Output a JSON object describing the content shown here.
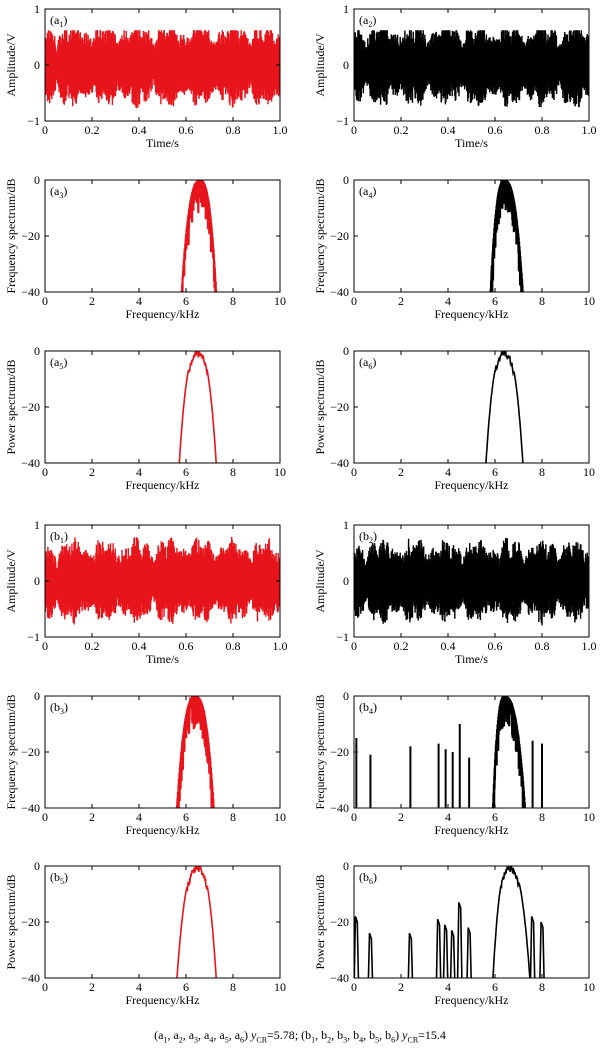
{
  "colors": {
    "red": "#e8141b",
    "black": "#000000"
  },
  "chart_data": [
    {
      "id": "a1",
      "type": "line",
      "signal": "time",
      "color": "red",
      "panel_label": "a",
      "panel_sub": "1",
      "xlabel": "Time/s",
      "ylabel": "Amplitude/V",
      "xlim": [
        0,
        1.0
      ],
      "ylim": [
        -1,
        1
      ],
      "xticks": [
        "0",
        "0.2",
        "0.4",
        "0.6",
        "0.8",
        "1.0"
      ],
      "yticks": [
        "1",
        "0",
        "−1"
      ],
      "y_peak_max": 0.62,
      "y_peak_min": -0.78,
      "grid": false
    },
    {
      "id": "a2",
      "type": "line",
      "signal": "time",
      "color": "black",
      "panel_label": "a",
      "panel_sub": "2",
      "xlabel": "Time/s",
      "ylabel": "Amplitude/V",
      "xlim": [
        0,
        1.0
      ],
      "ylim": [
        -1,
        1
      ],
      "xticks": [
        "0",
        "0.2",
        "0.4",
        "0.6",
        "0.8",
        "1.0"
      ],
      "yticks": [
        "1",
        "0",
        "−1"
      ],
      "y_peak_max": 0.62,
      "y_peak_min": -0.8,
      "grid": false
    },
    {
      "id": "a3",
      "type": "line",
      "signal": "spectrum",
      "color": "red",
      "panel_label": "a",
      "panel_sub": "3",
      "xlabel": "Frequency/kHz",
      "ylabel": "Frequency spectrum/dB",
      "xlim": [
        0,
        10
      ],
      "ylim": [
        -40,
        0
      ],
      "xticks": [
        "0",
        "2",
        "4",
        "6",
        "8",
        "10"
      ],
      "yticks": [
        "0",
        "−20",
        "−40"
      ],
      "band_khz": [
        5.8,
        7.3
      ],
      "peak_khz": 6.6,
      "peak_db": 0,
      "grid": false
    },
    {
      "id": "a4",
      "type": "line",
      "signal": "spectrum",
      "color": "black",
      "panel_label": "a",
      "panel_sub": "4",
      "xlabel": "Frequency/kHz",
      "ylabel": "Frequency spectrum/dB",
      "xlim": [
        0,
        10
      ],
      "ylim": [
        -40,
        0
      ],
      "xticks": [
        "0",
        "2",
        "4",
        "6",
        "8",
        "10"
      ],
      "yticks": [
        "0",
        "−20",
        "−40"
      ],
      "band_khz": [
        5.8,
        7.2
      ],
      "peak_khz": 6.4,
      "peak_db": 0,
      "grid": false
    },
    {
      "id": "a5",
      "type": "line",
      "signal": "power",
      "color": "red",
      "panel_label": "a",
      "panel_sub": "5",
      "xlabel": "Frequency/kHz",
      "ylabel": "Power spectrum/dB",
      "xlim": [
        0,
        10
      ],
      "ylim": [
        -40,
        0
      ],
      "xticks": [
        "0",
        "2",
        "4",
        "6",
        "8",
        "10"
      ],
      "yticks": [
        "0",
        "−20",
        "−40"
      ],
      "band_khz": [
        5.7,
        7.3
      ],
      "peak_khz": 6.5,
      "peak_db": 0,
      "grid": false
    },
    {
      "id": "a6",
      "type": "line",
      "signal": "power",
      "color": "black",
      "panel_label": "a",
      "panel_sub": "6",
      "xlabel": "Frequency/kHz",
      "ylabel": "Power spectrum/dB",
      "xlim": [
        0,
        10
      ],
      "ylim": [
        -40,
        0
      ],
      "xticks": [
        "0",
        "2",
        "4",
        "6",
        "8",
        "10"
      ],
      "yticks": [
        "0",
        "−20",
        "−40"
      ],
      "band_khz": [
        5.6,
        7.2
      ],
      "peak_khz": 6.4,
      "peak_db": 0,
      "grid": false
    },
    {
      "id": "b1",
      "type": "line",
      "signal": "time",
      "color": "red",
      "panel_label": "b",
      "panel_sub": "1",
      "xlabel": "Time/s",
      "ylabel": "Amplitude/V",
      "xlim": [
        0,
        1.0
      ],
      "ylim": [
        -1,
        1
      ],
      "xticks": [
        "0",
        "0.2",
        "0.4",
        "0.6",
        "0.8",
        "1.0"
      ],
      "yticks": [
        "1",
        "0",
        "−1"
      ],
      "y_peak_max": 0.9,
      "y_peak_min": -0.9,
      "grid": false
    },
    {
      "id": "b2",
      "type": "line",
      "signal": "time",
      "color": "black",
      "panel_label": "b",
      "panel_sub": "2",
      "xlabel": "Time/s",
      "ylabel": "Amplitude/V",
      "xlim": [
        0,
        1.0
      ],
      "ylim": [
        -1,
        1
      ],
      "xticks": [
        "0",
        "0.2",
        "0.4",
        "0.6",
        "0.8",
        "1.0"
      ],
      "yticks": [
        "1",
        "0",
        "−1"
      ],
      "y_peak_max": 0.8,
      "y_peak_min": -0.85,
      "grid": false
    },
    {
      "id": "b3",
      "type": "line",
      "signal": "spectrum",
      "color": "red",
      "panel_label": "b",
      "panel_sub": "3",
      "xlabel": "Frequency/kHz",
      "ylabel": "Frequency spectrum/dB",
      "xlim": [
        0,
        10
      ],
      "ylim": [
        -40,
        0
      ],
      "xticks": [
        "0",
        "2",
        "4",
        "6",
        "8",
        "10"
      ],
      "yticks": [
        "0",
        "−20",
        "−40"
      ],
      "band_khz": [
        5.6,
        7.2
      ],
      "peak_khz": 6.4,
      "peak_db": 0,
      "grid": false
    },
    {
      "id": "b4",
      "type": "line",
      "signal": "spectrum",
      "color": "black",
      "panel_label": "b",
      "panel_sub": "4",
      "xlabel": "Frequency/kHz",
      "ylabel": "Frequency spectrum/dB",
      "xlim": [
        0,
        10
      ],
      "ylim": [
        -40,
        0
      ],
      "xticks": [
        "0",
        "2",
        "4",
        "6",
        "8",
        "10"
      ],
      "yticks": [
        "0",
        "−20",
        "−40"
      ],
      "band_khz": [
        5.9,
        7.3
      ],
      "peak_khz": 6.4,
      "peak_db": 0,
      "spurs": [
        {
          "khz": 0.1,
          "db": -15
        },
        {
          "khz": 0.7,
          "db": -21
        },
        {
          "khz": 2.4,
          "db": -18
        },
        {
          "khz": 3.6,
          "db": -17
        },
        {
          "khz": 3.9,
          "db": -19
        },
        {
          "khz": 4.2,
          "db": -20
        },
        {
          "khz": 4.5,
          "db": -10
        },
        {
          "khz": 4.9,
          "db": -22
        },
        {
          "khz": 7.6,
          "db": -16
        },
        {
          "khz": 8.0,
          "db": -17
        }
      ],
      "grid": false
    },
    {
      "id": "b5",
      "type": "line",
      "signal": "power",
      "color": "red",
      "panel_label": "b",
      "panel_sub": "5",
      "xlabel": "Frequency/kHz",
      "ylabel": "Power spectrum/dB",
      "xlim": [
        0,
        10
      ],
      "ylim": [
        -40,
        0
      ],
      "xticks": [
        "0",
        "2",
        "4",
        "6",
        "8",
        "10"
      ],
      "yticks": [
        "0",
        "−20",
        "−40"
      ],
      "band_khz": [
        5.6,
        7.3
      ],
      "peak_khz": 6.5,
      "peak_db": 0,
      "grid": false
    },
    {
      "id": "b6",
      "type": "line",
      "signal": "power",
      "color": "black",
      "panel_label": "b",
      "panel_sub": "6",
      "xlabel": "Frequency/kHz",
      "ylabel": "Power spectrum/dB",
      "xlim": [
        0,
        10
      ],
      "ylim": [
        -40,
        0
      ],
      "xticks": [
        "0",
        "2",
        "4",
        "6",
        "8",
        "10"
      ],
      "yticks": [
        "0",
        "−20",
        "−40"
      ],
      "band_khz": [
        5.9,
        7.5
      ],
      "peak_khz": 6.6,
      "peak_db": 0,
      "spurs": [
        {
          "khz": 0.1,
          "db": -18
        },
        {
          "khz": 0.7,
          "db": -24
        },
        {
          "khz": 2.4,
          "db": -24
        },
        {
          "khz": 3.6,
          "db": -19
        },
        {
          "khz": 3.9,
          "db": -21
        },
        {
          "khz": 4.2,
          "db": -23
        },
        {
          "khz": 4.5,
          "db": -13
        },
        {
          "khz": 4.9,
          "db": -22
        },
        {
          "khz": 7.6,
          "db": -18
        },
        {
          "khz": 8.0,
          "db": -20
        }
      ],
      "grid": false
    }
  ],
  "caption": {
    "group_a": "a1, a2,   a3, a4, a5, a6",
    "group_b": "b1, b2, b3, b4, b5, b6",
    "symbol_main": "y",
    "symbol_sub": "CR",
    "value_a": "=5.78",
    "value_b": "=15.4"
  }
}
